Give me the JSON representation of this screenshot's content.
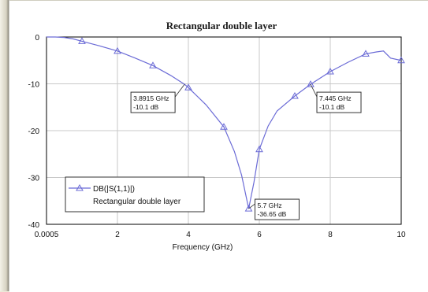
{
  "chart_data": {
    "type": "line",
    "title": "Rectangular double layer",
    "xlabel": "Frequency (GHz)",
    "ylabel": "",
    "xlim": [
      0.0005,
      10
    ],
    "ylim": [
      -40,
      0
    ],
    "x_ticks": [
      0.0005,
      2,
      4,
      6,
      8,
      10
    ],
    "x_tick_labels": [
      "0.0005",
      "2",
      "4",
      "6",
      "8",
      "10"
    ],
    "y_ticks": [
      0,
      -10,
      -20,
      -30,
      -40
    ],
    "y_tick_labels": [
      "0",
      "-10",
      "-20",
      "-30",
      "-40"
    ],
    "grid": true,
    "legend_position": "bottom-left",
    "legend": [
      "DB(|S(1,1)|)",
      "Rectangular double layer"
    ],
    "series": [
      {
        "name": "DB(|S(1,1)|)",
        "color": "#6b6bd6",
        "marker": "triangle",
        "x": [
          0.0005,
          0.25,
          0.5,
          0.75,
          1,
          1.5,
          2,
          2.5,
          3,
          3.5,
          3.8915,
          4,
          4.5,
          5,
          5.3,
          5.5,
          5.7,
          5.85,
          6,
          6.25,
          6.5,
          7,
          7.445,
          8,
          8.5,
          9,
          9.3,
          9.5,
          9.7,
          10
        ],
        "y": [
          0,
          0,
          -0.1,
          -0.4,
          -0.9,
          -1.9,
          -3.0,
          -4.5,
          -6.1,
          -8.2,
          -10.1,
          -10.8,
          -14.5,
          -19.2,
          -24.5,
          -29.5,
          -36.65,
          -31.0,
          -24.0,
          -19.0,
          -15.8,
          -12.6,
          -10.1,
          -7.4,
          -5.4,
          -3.6,
          -3.2,
          -3.0,
          -4.5,
          -5.0
        ]
      }
    ],
    "markers": {
      "x": [
        1,
        2,
        3,
        4,
        5,
        5.7,
        6,
        7,
        7.445,
        8,
        9,
        10
      ],
      "y": [
        -0.9,
        -3.0,
        -6.1,
        -10.8,
        -19.2,
        -36.65,
        -24.0,
        -12.6,
        -10.1,
        -7.4,
        -3.6,
        -5.0
      ]
    },
    "annotations": [
      {
        "x": 3.8915,
        "y": -10.1,
        "line1": "3.8915 GHz",
        "line2": "-10.1 dB",
        "side": "left"
      },
      {
        "x": 7.445,
        "y": -10.1,
        "line1": "7.445 GHz",
        "line2": "-10.1 dB",
        "side": "right"
      },
      {
        "x": 5.7,
        "y": -36.65,
        "line1": "5.7 GHz",
        "line2": "-36.65 dB",
        "side": "right"
      }
    ]
  }
}
